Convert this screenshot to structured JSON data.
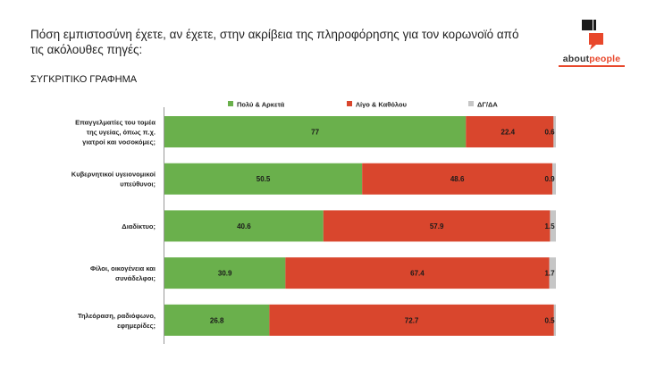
{
  "title": "Πόση εμπιστοσύνη έχετε, αν έχετε, στην ακρίβεια της πληροφόρησης για τον κορωνοϊό από τις ακόλουθες πηγές:",
  "subtitle": "ΣΥΓΚΡΙΤΙΚΟ ΓΡΑΦΗΜΑ",
  "logo": {
    "text_main": "about",
    "text_accent": "people"
  },
  "colors": {
    "series1": "#6ab04c",
    "series2": "#d9462d",
    "series3": "#c6c6c6",
    "logo_accent": "#e8472b",
    "axis": "#999999"
  },
  "chart_data": {
    "type": "bar",
    "orientation": "horizontal",
    "stacked": "100%",
    "legend_position": "top",
    "categories": [
      [
        "Επαγγελματίες του τομέα",
        "της υγείας, όπως π.χ.",
        "γιατροί και νοσοκόμες;"
      ],
      [
        "Κυβερνητικοί υγειονομικοί",
        "υπεύθυνοι;"
      ],
      [
        "Διαδίκτυο;"
      ],
      [
        "Φίλοι, οικογένεια και",
        "συνάδελφοι;"
      ],
      [
        "Τηλεόραση, ραδιόφωνο,",
        "εφημερίδες;"
      ]
    ],
    "series": [
      {
        "name": "Πολύ & Αρκετά",
        "values": [
          77,
          50.5,
          40.6,
          30.9,
          26.8
        ]
      },
      {
        "name": "Λίγο & Καθόλου",
        "values": [
          22.4,
          48.6,
          57.9,
          67.4,
          72.7
        ]
      },
      {
        "name": "ΔΓ/ΔΑ",
        "values": [
          0.6,
          0.9,
          1.5,
          1.7,
          0.5
        ]
      }
    ]
  }
}
